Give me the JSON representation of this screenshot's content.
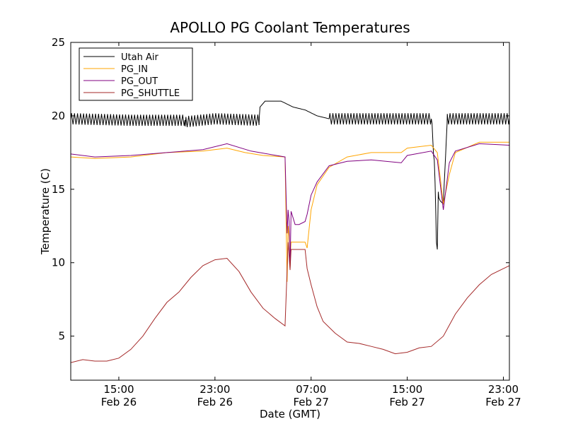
{
  "chart_data": {
    "type": "line",
    "title": "APOLLO PG Coolant Temperatures",
    "xlabel": "Date (GMT)",
    "ylabel": "Temperature (C)",
    "x_unit": "GMT",
    "xlim": [
      "2014-02-26 11:00",
      "2014-02-27 23:30"
    ],
    "ylim": [
      2,
      25
    ],
    "yticks": [
      5,
      10,
      15,
      20,
      25
    ],
    "xticks": [
      {
        "at": "2014-02-26 15:00",
        "line1": "15:00",
        "line2": "Feb 26"
      },
      {
        "at": "2014-02-26 23:00",
        "line1": "23:00",
        "line2": "Feb 26"
      },
      {
        "at": "2014-02-27 07:00",
        "line1": "07:00",
        "line2": "Feb 27"
      },
      {
        "at": "2014-02-27 15:00",
        "line1": "15:00",
        "line2": "Feb 27"
      },
      {
        "at": "2014-02-27 23:00",
        "line1": "23:00",
        "line2": "Feb 27"
      }
    ],
    "legend": "top-left",
    "grid": false,
    "series": [
      {
        "name": "Utah Air",
        "color": "#000000",
        "oscillation": {
          "amplitude": 0.38,
          "period_hours": 0.25,
          "ranges": [
            [
              "2014-02-26 11:00",
              "2014-02-27 02:40"
            ],
            [
              "2014-02-27 08:30",
              "2014-02-27 17:40"
            ],
            [
              "2014-02-27 18:20",
              "2014-02-27 23:30"
            ]
          ]
        },
        "points": [
          [
            "2014-02-26 11:00",
            19.8
          ],
          [
            "2014-02-26 16:00",
            19.7
          ],
          [
            "2014-02-26 19:00",
            19.7
          ],
          [
            "2014-02-26 20:30",
            19.7
          ],
          [
            "2014-02-26 20:32",
            19.0
          ],
          [
            "2014-02-26 20:35",
            19.6
          ],
          [
            "2014-02-26 23:00",
            19.8
          ],
          [
            "2014-02-27 02:40",
            19.7
          ],
          [
            "2014-02-27 02:45",
            20.6
          ],
          [
            "2014-02-27 03:10",
            21.0
          ],
          [
            "2014-02-27 04:30",
            21.0
          ],
          [
            "2014-02-27 05:30",
            20.6
          ],
          [
            "2014-02-27 06:30",
            20.4
          ],
          [
            "2014-02-27 07:30",
            20.0
          ],
          [
            "2014-02-27 08:30",
            19.8
          ],
          [
            "2014-02-27 12:00",
            19.8
          ],
          [
            "2014-02-27 17:00",
            19.8
          ],
          [
            "2014-02-27 17:15",
            17.0
          ],
          [
            "2014-02-27 17:25",
            12.0
          ],
          [
            "2014-02-27 17:30",
            10.9
          ],
          [
            "2014-02-27 17:35",
            14.5
          ],
          [
            "2014-02-27 17:45",
            14.2
          ],
          [
            "2014-02-27 18:00",
            14.0
          ],
          [
            "2014-02-27 18:20",
            19.8
          ],
          [
            "2014-02-27 21:00",
            19.8
          ],
          [
            "2014-02-27 23:30",
            19.8
          ]
        ]
      },
      {
        "name": "PG_IN",
        "color": "#ffa500",
        "points": [
          [
            "2014-02-26 11:00",
            17.2
          ],
          [
            "2014-02-26 13:00",
            17.1
          ],
          [
            "2014-02-26 16:00",
            17.2
          ],
          [
            "2014-02-26 19:00",
            17.5
          ],
          [
            "2014-02-26 22:00",
            17.6
          ],
          [
            "2014-02-27 00:00",
            17.8
          ],
          [
            "2014-02-27 01:30",
            17.5
          ],
          [
            "2014-02-27 03:00",
            17.3
          ],
          [
            "2014-02-27 04:50",
            17.2
          ],
          [
            "2014-02-27 05:00",
            8.7
          ],
          [
            "2014-02-27 05:05",
            12.5
          ],
          [
            "2014-02-27 05:10",
            11.8
          ],
          [
            "2014-02-27 05:15",
            10.2
          ],
          [
            "2014-02-27 05:20",
            11.4
          ],
          [
            "2014-02-27 06:30",
            11.4
          ],
          [
            "2014-02-27 06:40",
            11.0
          ],
          [
            "2014-02-27 07:00",
            13.6
          ],
          [
            "2014-02-27 07:30",
            15.3
          ],
          [
            "2014-02-27 08:30",
            16.5
          ],
          [
            "2014-02-27 10:00",
            17.2
          ],
          [
            "2014-02-27 12:00",
            17.5
          ],
          [
            "2014-02-27 14:30",
            17.5
          ],
          [
            "2014-02-27 15:00",
            17.8
          ],
          [
            "2014-02-27 17:00",
            18.0
          ],
          [
            "2014-02-27 17:30",
            17.5
          ],
          [
            "2014-02-27 18:00",
            14.0
          ],
          [
            "2014-02-27 18:30",
            16.0
          ],
          [
            "2014-02-27 19:00",
            17.5
          ],
          [
            "2014-02-27 21:00",
            18.2
          ],
          [
            "2014-02-27 23:30",
            18.2
          ]
        ]
      },
      {
        "name": "PG_OUT",
        "color": "#800080",
        "points": [
          [
            "2014-02-26 11:00",
            17.4
          ],
          [
            "2014-02-26 13:00",
            17.2
          ],
          [
            "2014-02-26 16:00",
            17.3
          ],
          [
            "2014-02-26 19:00",
            17.5
          ],
          [
            "2014-02-26 22:00",
            17.7
          ],
          [
            "2014-02-27 00:00",
            18.1
          ],
          [
            "2014-02-27 02:00",
            17.6
          ],
          [
            "2014-02-27 04:50",
            17.2
          ],
          [
            "2014-02-27 05:00",
            12.0
          ],
          [
            "2014-02-27 05:05",
            13.6
          ],
          [
            "2014-02-27 05:10",
            12.8
          ],
          [
            "2014-02-27 05:15",
            9.6
          ],
          [
            "2014-02-27 05:20",
            13.5
          ],
          [
            "2014-02-27 05:40",
            12.6
          ],
          [
            "2014-02-27 06:00",
            12.6
          ],
          [
            "2014-02-27 06:30",
            12.8
          ],
          [
            "2014-02-27 06:40",
            13.3
          ],
          [
            "2014-02-27 07:00",
            14.6
          ],
          [
            "2014-02-27 07:30",
            15.5
          ],
          [
            "2014-02-27 08:30",
            16.6
          ],
          [
            "2014-02-27 10:00",
            16.9
          ],
          [
            "2014-02-27 12:00",
            17.0
          ],
          [
            "2014-02-27 14:30",
            16.8
          ],
          [
            "2014-02-27 15:00",
            17.3
          ],
          [
            "2014-02-27 17:00",
            17.6
          ],
          [
            "2014-02-27 17:30",
            17.0
          ],
          [
            "2014-02-27 18:00",
            13.6
          ],
          [
            "2014-02-27 18:30",
            16.8
          ],
          [
            "2014-02-27 19:00",
            17.6
          ],
          [
            "2014-02-27 21:00",
            18.1
          ],
          [
            "2014-02-27 23:30",
            18.0
          ]
        ]
      },
      {
        "name": "PG_SHUTTLE",
        "color": "#a52a2a",
        "points": [
          [
            "2014-02-26 11:00",
            3.2
          ],
          [
            "2014-02-26 12:00",
            3.4
          ],
          [
            "2014-02-26 13:00",
            3.3
          ],
          [
            "2014-02-26 14:00",
            3.3
          ],
          [
            "2014-02-26 15:00",
            3.5
          ],
          [
            "2014-02-26 16:00",
            4.1
          ],
          [
            "2014-02-26 17:00",
            5.0
          ],
          [
            "2014-02-26 18:00",
            6.2
          ],
          [
            "2014-02-26 19:00",
            7.3
          ],
          [
            "2014-02-26 20:00",
            8.0
          ],
          [
            "2014-02-26 21:00",
            9.0
          ],
          [
            "2014-02-26 22:00",
            9.8
          ],
          [
            "2014-02-26 23:00",
            10.2
          ],
          [
            "2014-02-27 00:00",
            10.3
          ],
          [
            "2014-02-27 01:00",
            9.4
          ],
          [
            "2014-02-27 02:00",
            8.0
          ],
          [
            "2014-02-27 03:00",
            6.9
          ],
          [
            "2014-02-27 04:00",
            6.2
          ],
          [
            "2014-02-27 04:50",
            5.7
          ],
          [
            "2014-02-27 05:00",
            9.5
          ],
          [
            "2014-02-27 05:05",
            11.4
          ],
          [
            "2014-02-27 05:10",
            10.4
          ],
          [
            "2014-02-27 05:15",
            9.5
          ],
          [
            "2014-02-27 05:20",
            10.9
          ],
          [
            "2014-02-27 06:30",
            10.9
          ],
          [
            "2014-02-27 06:40",
            9.6
          ],
          [
            "2014-02-27 07:00",
            8.5
          ],
          [
            "2014-02-27 07:30",
            7.0
          ],
          [
            "2014-02-27 08:00",
            6.0
          ],
          [
            "2014-02-27 09:00",
            5.2
          ],
          [
            "2014-02-27 10:00",
            4.6
          ],
          [
            "2014-02-27 11:00",
            4.5
          ],
          [
            "2014-02-27 12:00",
            4.3
          ],
          [
            "2014-02-27 13:00",
            4.1
          ],
          [
            "2014-02-27 14:00",
            3.8
          ],
          [
            "2014-02-27 15:00",
            3.9
          ],
          [
            "2014-02-27 16:00",
            4.2
          ],
          [
            "2014-02-27 17:00",
            4.3
          ],
          [
            "2014-02-27 18:00",
            5.0
          ],
          [
            "2014-02-27 19:00",
            6.5
          ],
          [
            "2014-02-27 20:00",
            7.6
          ],
          [
            "2014-02-27 21:00",
            8.5
          ],
          [
            "2014-02-27 22:00",
            9.2
          ],
          [
            "2014-02-27 23:30",
            9.8
          ]
        ]
      }
    ]
  }
}
